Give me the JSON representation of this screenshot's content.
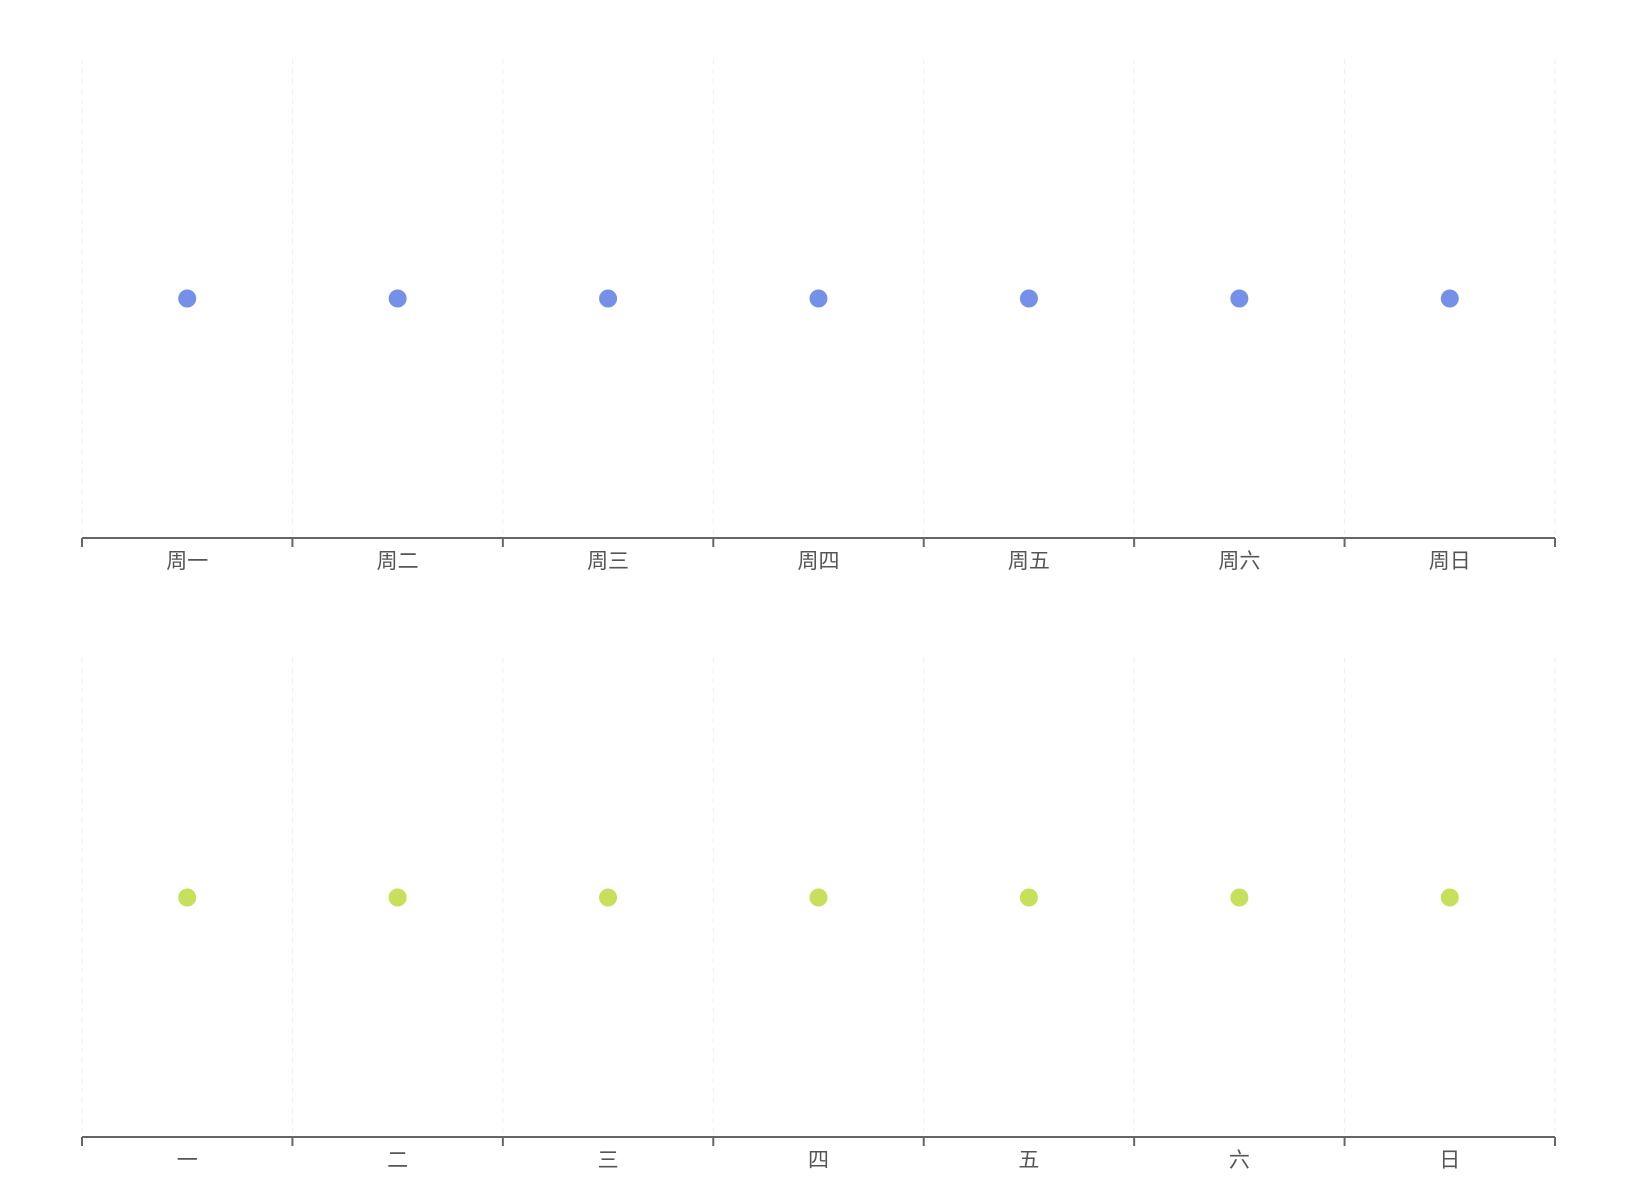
{
  "chart_data": [
    {
      "type": "scatter",
      "categories": [
        "周一",
        "周二",
        "周三",
        "周四",
        "周五",
        "周六",
        "周日"
      ],
      "values": [
        1,
        1,
        1,
        1,
        1,
        1,
        1
      ],
      "color": "#7590e8",
      "grid": true
    },
    {
      "type": "scatter",
      "categories": [
        "一",
        "二",
        "三",
        "四",
        "五",
        "六",
        "日"
      ],
      "values": [
        1,
        1,
        1,
        1,
        1,
        1,
        1
      ],
      "color": "#c6e05c",
      "grid": true
    }
  ]
}
